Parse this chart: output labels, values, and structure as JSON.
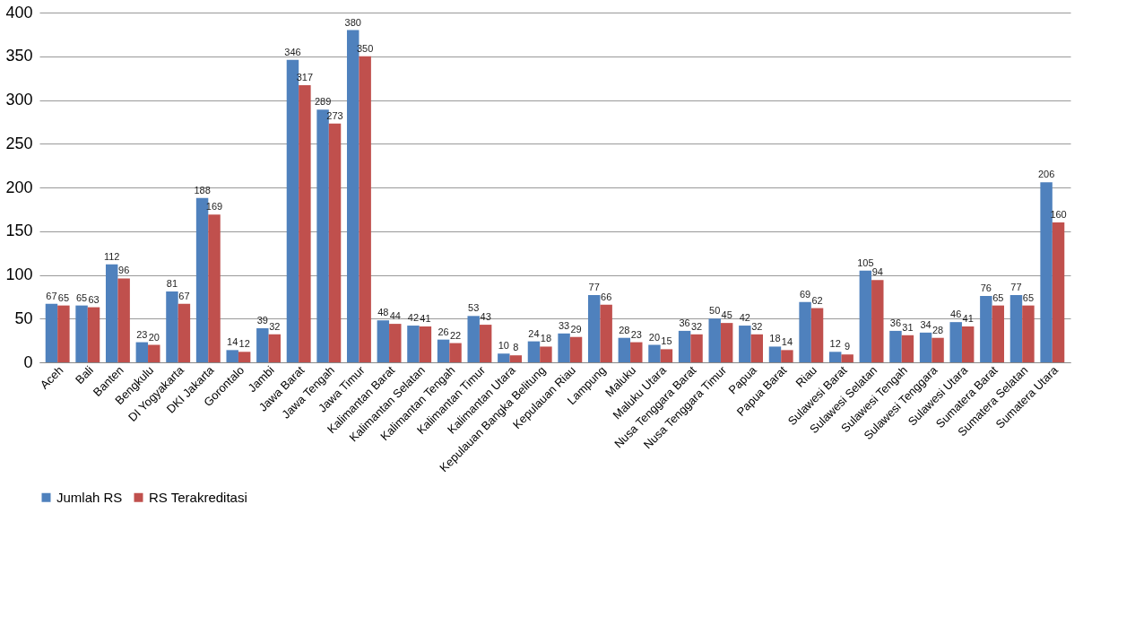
{
  "chart_data": {
    "type": "bar",
    "categories": [
      "Aceh",
      "Bali",
      "Banten",
      "Bengkulu",
      "DI Yogyakarta",
      "DKI Jakarta",
      "Gorontalo",
      "Jambi",
      "Jawa Barat",
      "Jawa Tengah",
      "Jawa Timur",
      "Kalimantan Barat",
      "Kalimantan Selatan",
      "Kalimantan Tengah",
      "Kalimantan Timur",
      "Kalimantan Utara",
      "Kepulauan Bangka Belitung",
      "Kepulauan Riau",
      "Lampung",
      "Maluku",
      "Maluku Utara",
      "Nusa Tenggara Barat",
      "Nusa Tenggara Timur",
      "Papua",
      "Papua Barat",
      "Riau",
      "Sulawesi Barat",
      "Sulawesi Selatan",
      "Sulawesi Tengah",
      "Sulawesi Tenggara",
      "Sulawesi Utara",
      "Sumatera Barat",
      "Sumatera Selatan",
      "Sumatera Utara"
    ],
    "series": [
      {
        "name": "Jumlah RS",
        "color": "#4f81bd",
        "values": [
          67,
          65,
          112,
          23,
          81,
          188,
          14,
          39,
          346,
          289,
          380,
          48,
          42,
          26,
          53,
          10,
          24,
          33,
          77,
          28,
          20,
          36,
          50,
          42,
          18,
          69,
          12,
          105,
          36,
          34,
          46,
          76,
          77,
          206
        ]
      },
      {
        "name": "RS Terakreditasi",
        "color": "#c0504d",
        "values": [
          65,
          63,
          96,
          20,
          67,
          169,
          12,
          32,
          317,
          273,
          350,
          44,
          41,
          22,
          43,
          8,
          18,
          29,
          66,
          23,
          15,
          32,
          45,
          32,
          14,
          62,
          9,
          94,
          31,
          28,
          41,
          65,
          65,
          160
        ]
      }
    ],
    "ylim": [
      0,
      400
    ],
    "yticks": [
      0,
      50,
      100,
      150,
      200,
      250,
      300,
      350,
      400
    ],
    "grid": "y",
    "legend": "bottom",
    "data_labels": true
  }
}
